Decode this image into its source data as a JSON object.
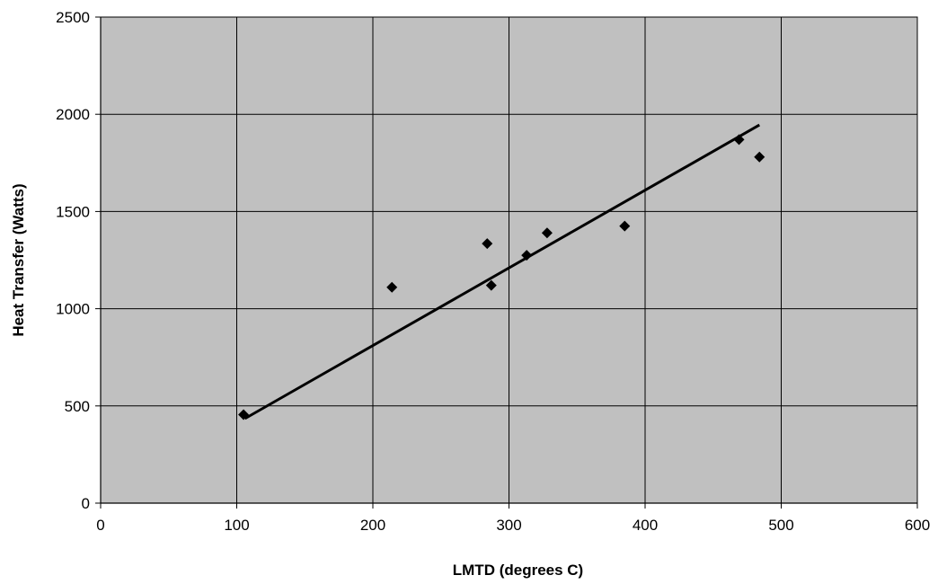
{
  "chart_data": {
    "type": "scatter",
    "title": "",
    "xlabel": "LMTD (degrees C)",
    "ylabel": "Heat Transfer (Watts)",
    "xlim": [
      0,
      600
    ],
    "ylim": [
      0,
      2500
    ],
    "x_ticks": [
      0,
      100,
      200,
      300,
      400,
      500,
      600
    ],
    "y_ticks": [
      0,
      500,
      1000,
      1500,
      2000,
      2500
    ],
    "grid": true,
    "legend": "none",
    "plot_background": "#c0c0c0",
    "marker": "diamond",
    "marker_color": "#000000",
    "series": [
      {
        "points": [
          {
            "x": 105,
            "y": 455
          },
          {
            "x": 214,
            "y": 1110
          },
          {
            "x": 284,
            "y": 1335
          },
          {
            "x": 287,
            "y": 1120
          },
          {
            "x": 313,
            "y": 1275
          },
          {
            "x": 328,
            "y": 1390
          },
          {
            "x": 385,
            "y": 1425
          },
          {
            "x": 469,
            "y": 1870
          },
          {
            "x": 484,
            "y": 1780
          }
        ]
      }
    ],
    "trendline": {
      "type": "linear",
      "x": [
        106,
        484
      ],
      "y": [
        435,
        1945
      ]
    }
  }
}
